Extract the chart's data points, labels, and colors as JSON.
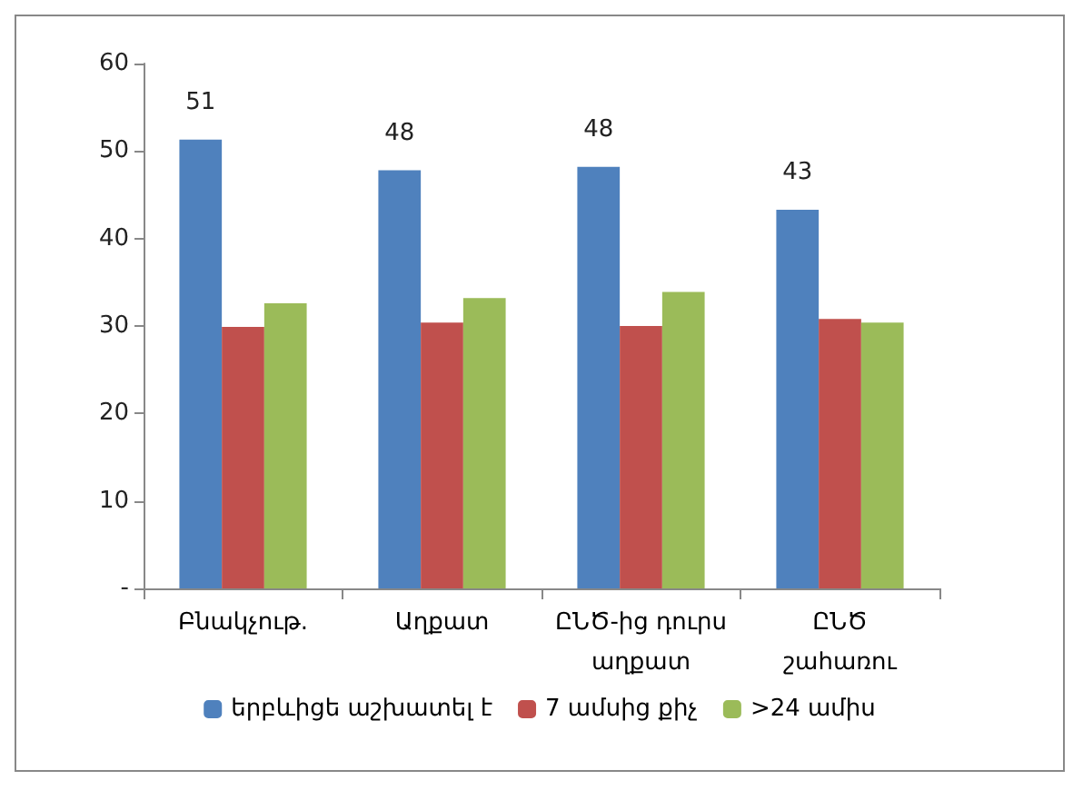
{
  "chart_data": {
    "type": "bar",
    "categories": [
      "Բնակչութ.",
      "Աղքատ",
      "ԸՆԾ-ից դուրս\nաղքատ",
      "ԸՆԾ\nշահառու"
    ],
    "series": [
      {
        "name": "երբևիցե աշխատել է",
        "color": "#4f81bd",
        "values": [
          51.3,
          47.8,
          48.2,
          43.3
        ],
        "value_labels": [
          "51",
          "48",
          "48",
          "43"
        ]
      },
      {
        "name": "7 ամսից քիչ",
        "color": "#c0504d",
        "values": [
          29.9,
          30.4,
          30.0,
          30.8
        ]
      },
      {
        "name": ">24 ամիս",
        "color": "#9bbb59",
        "values": [
          32.6,
          33.2,
          33.9,
          30.4
        ]
      }
    ],
    "ylim": [
      0,
      60
    ],
    "yticks": [
      {
        "value": 0,
        "label": "-"
      },
      10,
      20,
      30,
      40,
      50,
      60
    ],
    "grid": false,
    "legend": "bottom"
  }
}
